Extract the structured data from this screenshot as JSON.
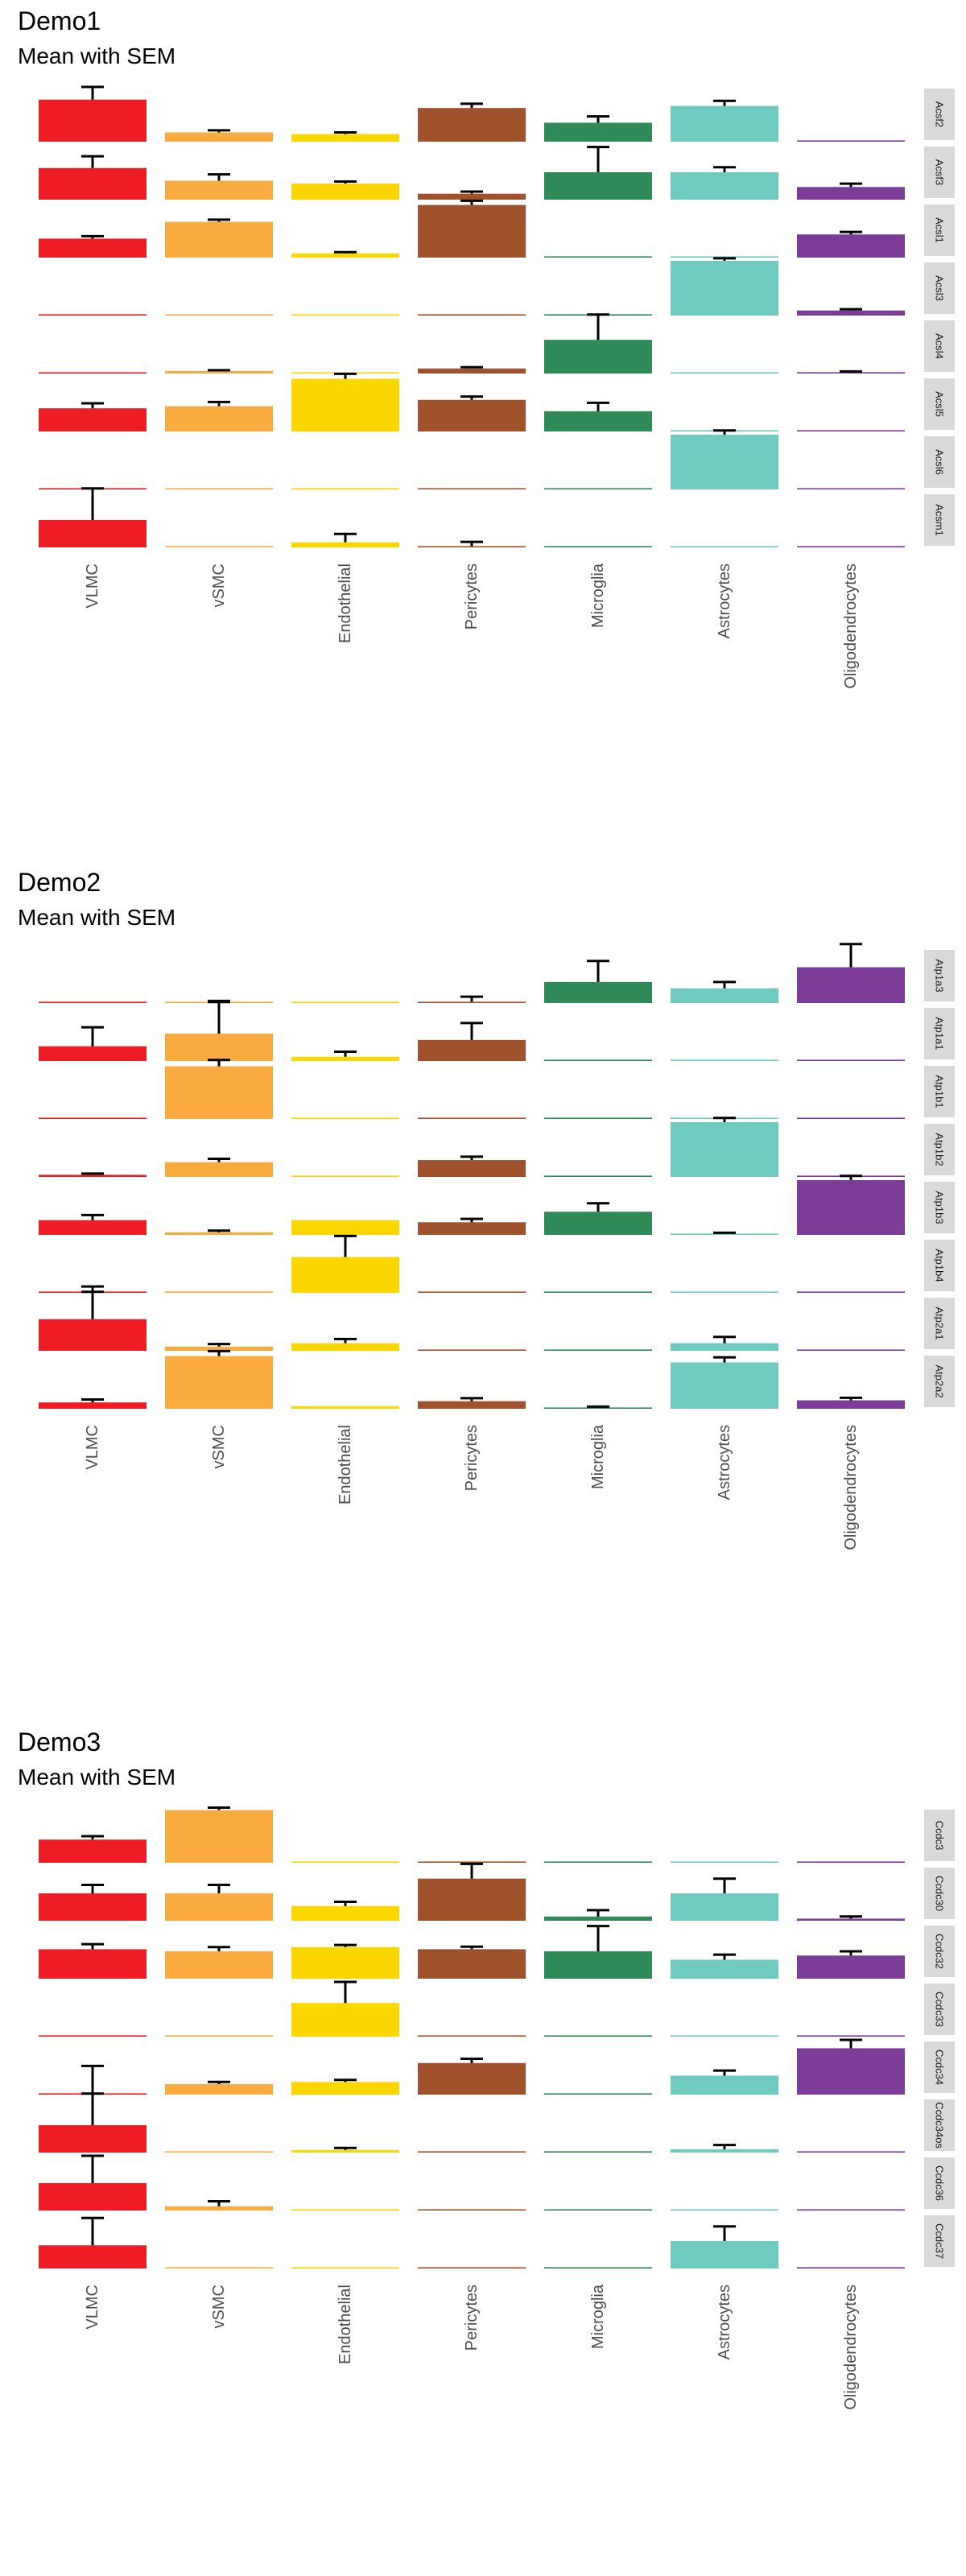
{
  "colors": {
    "VLMC": "#ee1c24",
    "vSMC": "#f9ab3f",
    "Endothelial": "#fcd600",
    "Pericytes": "#a0522d",
    "Microglia": "#2e8b57",
    "Astrocytes": "#6fcac0",
    "Oligodendrocytes": "#7d3c98",
    "strip": "#d9d9d9",
    "axis_text": "#4d4d4d"
  },
  "chart_data": [
    {
      "type": "bar",
      "title": "Demo1",
      "subtitle": "Mean with SEM",
      "categories": [
        "VLMC",
        "vSMC",
        "Endothelial",
        "Pericytes",
        "Microglia",
        "Astrocytes",
        "Oligodendrocytes"
      ],
      "facet_ylim": [
        0,
        1.3
      ],
      "facets": [
        {
          "name": "Acsf2",
          "values": [
            1.0,
            0.22,
            0.18,
            0.8,
            0.45,
            0.85,
            0.0
          ],
          "sem": [
            0.3,
            0.05,
            0.04,
            0.1,
            0.15,
            0.12,
            0.0
          ]
        },
        {
          "name": "Acsf3",
          "values": [
            0.75,
            0.45,
            0.38,
            0.14,
            0.65,
            0.65,
            0.3
          ],
          "sem": [
            0.28,
            0.15,
            0.05,
            0.05,
            0.6,
            0.12,
            0.08
          ]
        },
        {
          "name": "Acsl1",
          "values": [
            0.45,
            0.85,
            0.1,
            1.25,
            0.0,
            0.0,
            0.55
          ],
          "sem": [
            0.06,
            0.05,
            0.03,
            0.1,
            0.0,
            0.0,
            0.06
          ]
        },
        {
          "name": "Acsl3",
          "values": [
            0.0,
            0.0,
            0.0,
            0.0,
            0.0,
            1.3,
            0.12
          ],
          "sem": [
            0.0,
            0.0,
            0.0,
            0.0,
            0.0,
            0.06,
            0.03
          ]
        },
        {
          "name": "Acsl4",
          "values": [
            0.0,
            0.06,
            0.02,
            0.12,
            0.8,
            0.0,
            0.02
          ],
          "sem": [
            0.0,
            0.02,
            0.0,
            0.03,
            0.6,
            0.0,
            0.02
          ]
        },
        {
          "name": "Acsl5",
          "values": [
            0.55,
            0.6,
            1.25,
            0.75,
            0.48,
            0.0,
            0.0
          ],
          "sem": [
            0.12,
            0.1,
            0.12,
            0.08,
            0.2,
            0.0,
            0.0
          ]
        },
        {
          "name": "Acsl6",
          "values": [
            0.0,
            0.0,
            0.0,
            0.0,
            0.0,
            1.3,
            0.0
          ],
          "sem": [
            0.0,
            0.0,
            0.0,
            0.0,
            0.0,
            0.1,
            0.0
          ]
        },
        {
          "name": "Acsm1",
          "values": [
            0.65,
            0.0,
            0.12,
            0.0,
            0.0,
            0.0,
            0.0
          ],
          "sem": [
            0.75,
            0.0,
            0.2,
            0.1,
            0.0,
            0.0,
            0.0
          ]
        }
      ]
    },
    {
      "type": "bar",
      "title": "Demo2",
      "subtitle": "Mean with SEM",
      "categories": [
        "VLMC",
        "vSMC",
        "Endothelial",
        "Pericytes",
        "Microglia",
        "Astrocytes",
        "Oligodendrocytes"
      ],
      "facet_ylim": [
        0,
        1.3
      ],
      "facets": [
        {
          "name": "Atp1a3",
          "values": [
            0.0,
            0.03,
            0.0,
            0.0,
            0.5,
            0.35,
            0.85
          ],
          "sem": [
            0.0,
            0.02,
            0.0,
            0.12,
            0.5,
            0.15,
            0.55
          ]
        },
        {
          "name": "Atp1a1",
          "values": [
            0.35,
            0.65,
            0.1,
            0.5,
            0.0,
            0.0,
            0.0
          ],
          "sem": [
            0.45,
            0.75,
            0.12,
            0.4,
            0.0,
            0.0,
            0.0
          ]
        },
        {
          "name": "Atp1b1",
          "values": [
            0.0,
            1.25,
            0.0,
            0.0,
            0.0,
            0.0,
            0.0
          ],
          "sem": [
            0.0,
            0.15,
            0.0,
            0.0,
            0.0,
            0.0,
            0.0
          ]
        },
        {
          "name": "Atp1b2",
          "values": [
            0.05,
            0.35,
            0.0,
            0.4,
            0.0,
            1.3,
            0.0
          ],
          "sem": [
            0.03,
            0.08,
            0.0,
            0.08,
            0.0,
            0.1,
            0.0
          ]
        },
        {
          "name": "Atp1b3",
          "values": [
            0.35,
            0.06,
            0.35,
            0.3,
            0.55,
            0.02,
            1.3
          ],
          "sem": [
            0.12,
            0.04,
            0.0,
            0.08,
            0.2,
            0.02,
            0.1
          ]
        },
        {
          "name": "Atp1b4",
          "values": [
            0.02,
            0.0,
            0.85,
            0.0,
            0.0,
            0.0,
            0.0
          ],
          "sem": [
            0.12,
            0.0,
            0.5,
            0.0,
            0.0,
            0.0,
            0.0
          ]
        },
        {
          "name": "Atp2a1",
          "values": [
            0.75,
            0.1,
            0.18,
            0.0,
            0.0,
            0.18,
            0.0
          ],
          "sem": [
            0.65,
            0.06,
            0.1,
            0.0,
            0.0,
            0.15,
            0.0
          ]
        },
        {
          "name": "Atp2a2",
          "values": [
            0.15,
            1.25,
            0.06,
            0.18,
            0.02,
            1.1,
            0.2
          ],
          "sem": [
            0.07,
            0.12,
            0.0,
            0.07,
            0.02,
            0.12,
            0.06
          ]
        }
      ]
    },
    {
      "type": "bar",
      "title": "Demo3",
      "subtitle": "Mean with SEM",
      "categories": [
        "VLMC",
        "vSMC",
        "Endothelial",
        "Pericytes",
        "Microglia",
        "Astrocytes",
        "Oligodendrocytes"
      ],
      "facet_ylim": [
        0,
        1.3
      ],
      "facets": [
        {
          "name": "Ccdc3",
          "values": [
            0.55,
            1.25,
            0.0,
            0.0,
            0.0,
            0.0,
            0.0
          ],
          "sem": [
            0.08,
            0.06,
            0.0,
            0.0,
            0.0,
            0.0,
            0.0
          ]
        },
        {
          "name": "Ccdc30",
          "values": [
            0.65,
            0.65,
            0.35,
            1.0,
            0.1,
            0.65,
            0.05
          ],
          "sem": [
            0.2,
            0.2,
            0.1,
            0.35,
            0.15,
            0.35,
            0.05
          ]
        },
        {
          "name": "Ccdc32",
          "values": [
            0.7,
            0.65,
            0.75,
            0.7,
            0.65,
            0.45,
            0.55
          ],
          "sem": [
            0.12,
            0.1,
            0.05,
            0.06,
            0.6,
            0.12,
            0.1
          ]
        },
        {
          "name": "Ccdc33",
          "values": [
            0.0,
            0.0,
            0.8,
            0.0,
            0.0,
            0.0,
            0.0
          ],
          "sem": [
            0.0,
            0.0,
            0.5,
            0.0,
            0.0,
            0.0,
            0.0
          ]
        },
        {
          "name": "Ccdc34",
          "values": [
            0.0,
            0.25,
            0.3,
            0.75,
            0.0,
            0.45,
            1.1
          ],
          "sem": [
            0.65,
            0.05,
            0.05,
            0.1,
            0.0,
            0.12,
            0.2
          ]
        },
        {
          "name": "Ccdc34os",
          "values": [
            0.65,
            0.0,
            0.06,
            0.0,
            0.0,
            0.08,
            0.0
          ],
          "sem": [
            0.75,
            0.0,
            0.05,
            0.0,
            0.0,
            0.1,
            0.0
          ]
        },
        {
          "name": "Ccdc36",
          "values": [
            0.65,
            0.1,
            0.0,
            0.0,
            0.0,
            0.0,
            0.0
          ],
          "sem": [
            0.65,
            0.12,
            0.0,
            0.0,
            0.0,
            0.0,
            0.0
          ]
        },
        {
          "name": "Ccdc37",
          "values": [
            0.55,
            0.0,
            0.0,
            0.0,
            0.0,
            0.65,
            0.0
          ],
          "sem": [
            0.65,
            0.0,
            0.0,
            0.0,
            0.0,
            0.35,
            0.0
          ]
        }
      ]
    }
  ]
}
